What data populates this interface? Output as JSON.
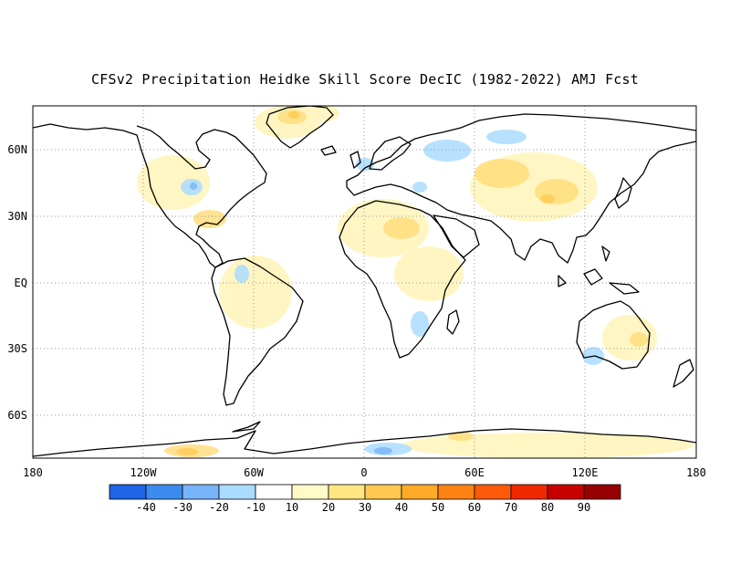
{
  "title": "CFSv2 Precipitation Heidke Skill Score DecIC (1982-2022) AMJ Fcst",
  "axes": {
    "lon_labels": [
      "180",
      "120W",
      "60W",
      "0",
      "60E",
      "120E",
      "180"
    ],
    "lat_labels": [
      "60N",
      "30N",
      "EQ",
      "30S",
      "60S"
    ]
  },
  "colorbar": {
    "colors": [
      "#1e64e6",
      "#3c8cf0",
      "#78b4fa",
      "#aadcff",
      "#ffffff",
      "#fffac8",
      "#ffe682",
      "#ffc850",
      "#ffaa28",
      "#ff8214",
      "#ff5a0a",
      "#f02800",
      "#c80000",
      "#960000"
    ],
    "tick_labels": [
      "-40",
      "-30",
      "-20",
      "-10",
      "10",
      "20",
      "30",
      "40",
      "50",
      "60",
      "70",
      "80",
      "90"
    ]
  },
  "colors": {
    "coast": "#000000",
    "grid": "#9a9a9a",
    "positive": "#ffe682",
    "negative": "#aadcff"
  }
}
